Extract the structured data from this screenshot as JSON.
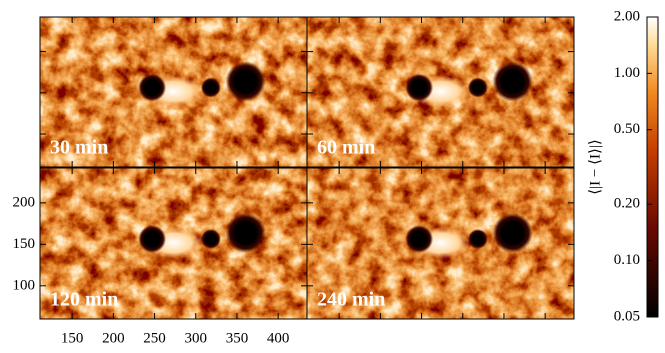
{
  "chart_data": {
    "type": "image-grid",
    "panels": [
      {
        "label": "30 min"
      },
      {
        "label": "60 min"
      },
      {
        "label": "120 min"
      },
      {
        "label": "240 min"
      }
    ],
    "xlim": [
      111,
      435
    ],
    "xticks": [
      150,
      200,
      250,
      300,
      350,
      400
    ],
    "ylim": [
      60,
      242
    ],
    "yticks": [
      100,
      150,
      200
    ],
    "colorbar": {
      "label": "⟨|I − ⟨I⟩|⟩",
      "scale": "log",
      "lim": [
        0.05,
        2
      ],
      "ticks": [
        {
          "value": 2,
          "label": "2.00"
        },
        {
          "value": 1,
          "label": "1.00"
        },
        {
          "value": 0.5,
          "label": "0.50"
        },
        {
          "value": 0.2,
          "label": "0.20"
        },
        {
          "value": 0.1,
          "label": "0.10"
        },
        0.05
      ]
    }
  }
}
